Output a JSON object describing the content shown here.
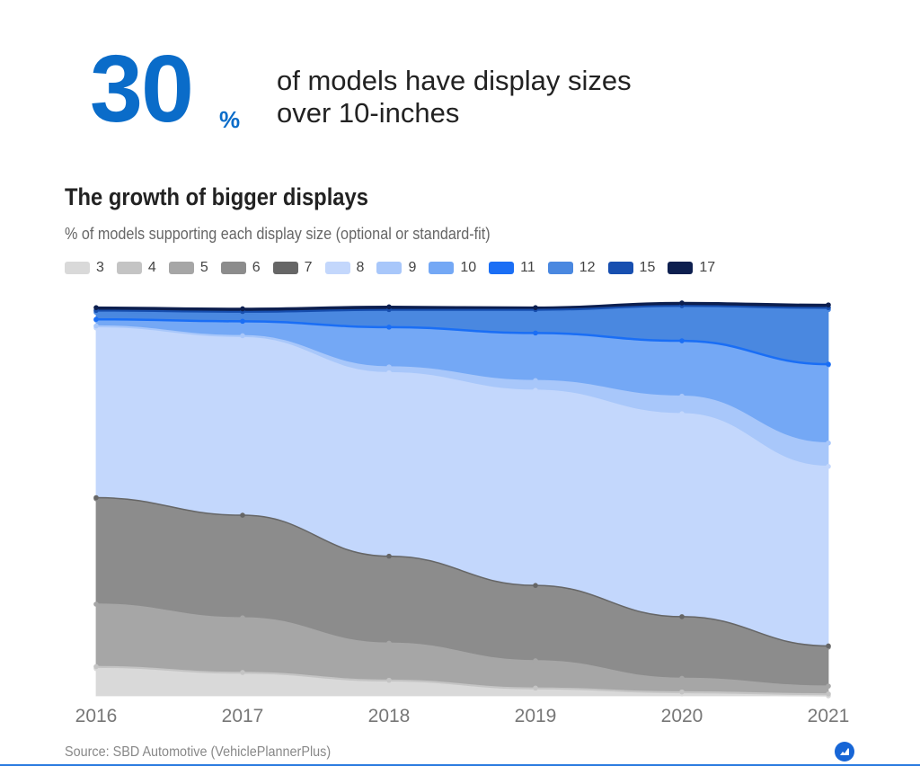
{
  "highlight": {
    "number": "30",
    "unit": "%",
    "text": "of models have display sizes over 10-inches"
  },
  "source": "Source: SBD Automotive (VehiclePlannerPlus)",
  "chart_data": {
    "type": "area",
    "stacked": true,
    "title": "The growth of bigger displays",
    "subtitle": "% of models supporting each display size (optional or standard-fit)",
    "xlabel": "",
    "ylabel": "",
    "ylim": [
      0,
      100
    ],
    "x": [
      "2016",
      "2017",
      "2018",
      "2019",
      "2020",
      "2021"
    ],
    "series": [
      {
        "name": "3",
        "color": "#d9d9d9",
        "values": [
          7,
          5.5,
          3.5,
          1.5,
          0.5,
          0
        ]
      },
      {
        "name": "4",
        "color": "#c4c4c4",
        "values": [
          0.5,
          0.5,
          0.5,
          0.5,
          0.5,
          0.5
        ]
      },
      {
        "name": "5",
        "color": "#a6a6a6",
        "values": [
          16,
          14,
          9.5,
          7,
          3.5,
          2
        ]
      },
      {
        "name": "6",
        "color": "#8c8c8c",
        "values": [
          27,
          26,
          22,
          19,
          15.5,
          10
        ]
      },
      {
        "name": "7",
        "color": "#666666",
        "values": [
          0.3,
          0.3,
          0.3,
          0.3,
          0.3,
          0.3
        ]
      },
      {
        "name": "8",
        "color": "#c3d7fc",
        "values": [
          43.5,
          45.5,
          47,
          50,
          52,
          46
        ]
      },
      {
        "name": "9",
        "color": "#a8c7fa",
        "values": [
          0.5,
          0.5,
          1.5,
          2.5,
          4.5,
          6
        ]
      },
      {
        "name": "10",
        "color": "#74a8f5",
        "values": [
          1.5,
          3.5,
          10,
          12,
          14,
          20
        ]
      },
      {
        "name": "11",
        "color": "#1a6ef5",
        "values": [
          0.2,
          0.2,
          0.2,
          0.2,
          0.2,
          0.2
        ]
      },
      {
        "name": "12",
        "color": "#4a88e0",
        "values": [
          1.8,
          2,
          4,
          5.5,
          8.5,
          14
        ]
      },
      {
        "name": "15",
        "color": "#174fb0",
        "values": [
          0.5,
          0.5,
          0.5,
          0.5,
          0.5,
          0.5
        ]
      },
      {
        "name": "17",
        "color": "#0d1f4f",
        "values": [
          0.7,
          0.7,
          0.7,
          0.5,
          0.7,
          0.7
        ]
      }
    ],
    "legend": {
      "placement": "top-left"
    }
  }
}
